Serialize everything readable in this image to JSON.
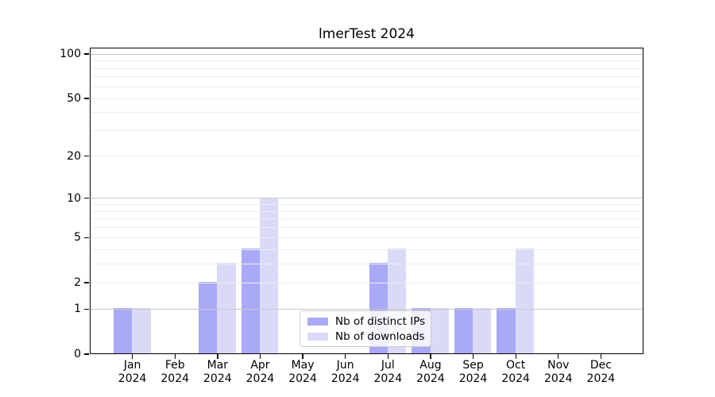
{
  "title": "lmerTest 2024",
  "colors": {
    "distinct_ips_bar": "#a9a9f8",
    "downloads_bar": "#dadaf8",
    "grid_major": "#c9c9c9",
    "grid_minor": "#ededed",
    "axis": "#000000",
    "legend_border": "#cccccc"
  },
  "y_axis": {
    "tick_labels": [
      "0",
      "1",
      "2",
      "5",
      "10",
      "20",
      "50",
      "100"
    ],
    "tick_values": [
      0,
      1,
      2,
      5,
      10,
      20,
      50,
      100
    ],
    "major_gridline_values": [
      1,
      10,
      100
    ],
    "minor_gridline_values": [
      2,
      3,
      4,
      5,
      6,
      7,
      8,
      9,
      20,
      30,
      40,
      50,
      60,
      70,
      80,
      90
    ]
  },
  "x_axis": {
    "months": [
      "Jan",
      "Feb",
      "Mar",
      "Apr",
      "May",
      "Jun",
      "Jul",
      "Aug",
      "Sep",
      "Oct",
      "Nov",
      "Dec"
    ],
    "year": "2024"
  },
  "legend": {
    "items": [
      {
        "label": "Nb of distinct IPs",
        "color_key": "distinct_ips_bar"
      },
      {
        "label": "Nb of downloads",
        "color_key": "downloads_bar"
      }
    ]
  },
  "chart_data": {
    "type": "bar",
    "title": "lmerTest 2024",
    "categories": [
      "Jan 2024",
      "Feb 2024",
      "Mar 2024",
      "Apr 2024",
      "May 2024",
      "Jun 2024",
      "Jul 2024",
      "Aug 2024",
      "Sep 2024",
      "Oct 2024",
      "Nov 2024",
      "Dec 2024"
    ],
    "series": [
      {
        "name": "Nb of distinct IPs",
        "color": "#a9a9f8",
        "values": [
          1,
          0,
          2,
          4,
          0,
          0,
          3,
          1,
          1,
          1,
          0,
          0
        ]
      },
      {
        "name": "Nb of downloads",
        "color": "#dadaf8",
        "values": [
          1,
          0,
          3,
          10,
          0,
          0,
          4,
          1,
          1,
          4,
          0,
          0
        ]
      }
    ],
    "xlabel": "",
    "ylabel": "",
    "yscale": "log1p",
    "yticks": [
      0,
      1,
      2,
      5,
      10,
      20,
      50,
      100
    ],
    "ylim": [
      0,
      112
    ],
    "grid": true,
    "gridlines_above_bars": true,
    "legend_position": "inside-bottom-center"
  }
}
